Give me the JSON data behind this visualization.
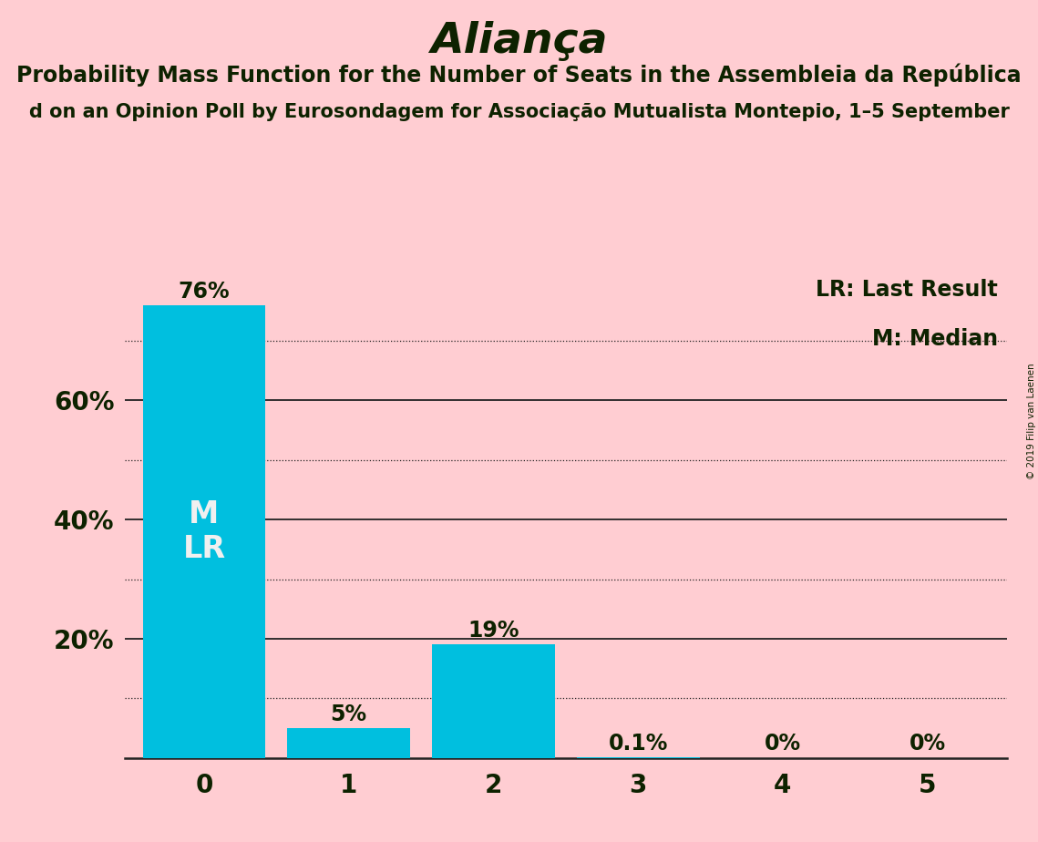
{
  "title": "Aliança",
  "subtitle1": "Probability Mass Function for the Number of Seats in the Assembleia da República",
  "subtitle2": "d on an Opinion Poll by Eurosondagem for Associação Mutualista Montepio, 1–5 September",
  "copyright": "© 2019 Filip van Laenen",
  "categories": [
    0,
    1,
    2,
    3,
    4,
    5
  ],
  "values": [
    0.76,
    0.05,
    0.19,
    0.001,
    0.0,
    0.0
  ],
  "bar_color": "#00BFDF",
  "background_color": "#FFCDD2",
  "text_color": "#0d2200",
  "bar_label_color_dark": "#0d2200",
  "bar_label_color_light": "#f0f0f0",
  "bar_labels": [
    "76%",
    "5%",
    "19%",
    "0.1%",
    "0%",
    "0%"
  ],
  "median_bar": 0,
  "lr_bar": 0,
  "legend_lr": "LR: Last Result",
  "legend_m": "M: Median",
  "ylabel_ticks": [
    0.2,
    0.4,
    0.6
  ],
  "ylabel_labels": [
    "20%",
    "40%",
    "60%"
  ],
  "dotted_lines": [
    0.1,
    0.3,
    0.5,
    0.7
  ],
  "solid_lines": [
    0.2,
    0.4,
    0.6
  ],
  "ylim": [
    0,
    0.82
  ],
  "title_fontsize": 34,
  "subtitle1_fontsize": 17,
  "subtitle2_fontsize": 15,
  "bar_label_fontsize": 17,
  "tick_fontsize": 20,
  "legend_fontsize": 17,
  "ml_fontsize": 24
}
